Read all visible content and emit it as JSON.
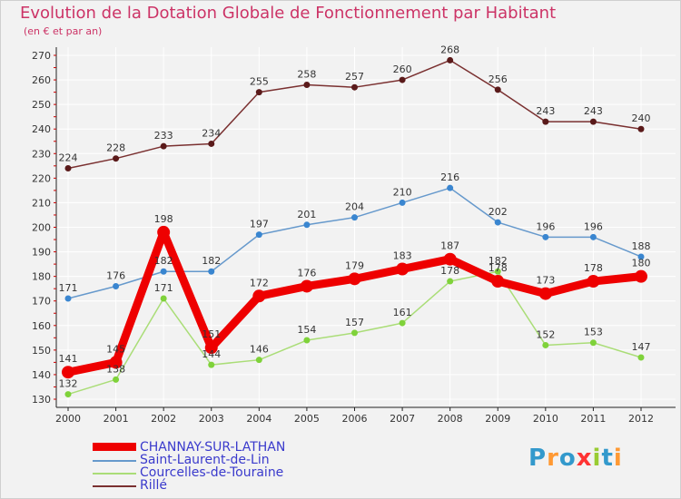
{
  "title": "Evolution de la Dotation Globale de Fonctionnement par Habitant",
  "subtitle": "(en € et par an)",
  "logo_text": "Proxiti",
  "chart_data": {
    "type": "line",
    "title": "Evolution de la Dotation Globale de Fonctionnement par Habitant",
    "subtitle": "(en € et par an)",
    "x": [
      "2000",
      "2001",
      "2002",
      "2003",
      "2004",
      "2005",
      "2006",
      "2007",
      "2008",
      "2009",
      "2010",
      "2011",
      "2012"
    ],
    "ylim": [
      130,
      270
    ],
    "yticks": [
      130,
      140,
      150,
      160,
      170,
      180,
      190,
      200,
      210,
      220,
      230,
      240,
      250,
      260,
      270
    ],
    "grid": true,
    "legend_position": "bottom-left",
    "series": [
      {
        "name": "CHANNAY-SUR-LATHAN",
        "color": "#ee0000",
        "point_color": "#ee0000",
        "width": 9,
        "radius": 7,
        "values": [
          141,
          145,
          198,
          151,
          172,
          176,
          179,
          183,
          187,
          178,
          173,
          178,
          180
        ]
      },
      {
        "name": "Saint-Laurent-de-Lin",
        "color": "#6699cc",
        "point_color": "#3a86d0",
        "width": 1.5,
        "radius": 3.5,
        "values": [
          171,
          176,
          182,
          182,
          197,
          201,
          204,
          210,
          216,
          202,
          196,
          196,
          188
        ]
      },
      {
        "name": "Courcelles-de-Touraine",
        "color": "#aadd77",
        "point_color": "#7fd23a",
        "width": 1.5,
        "radius": 3.5,
        "values": [
          132,
          138,
          171,
          144,
          146,
          154,
          157,
          161,
          178,
          182,
          152,
          153,
          147
        ]
      },
      {
        "name": "Rillé",
        "color": "#7a3030",
        "point_color": "#5a1a1a",
        "width": 1.5,
        "radius": 3.5,
        "values": [
          224,
          228,
          233,
          234,
          255,
          258,
          257,
          260,
          268,
          256,
          243,
          243,
          240
        ]
      }
    ]
  }
}
